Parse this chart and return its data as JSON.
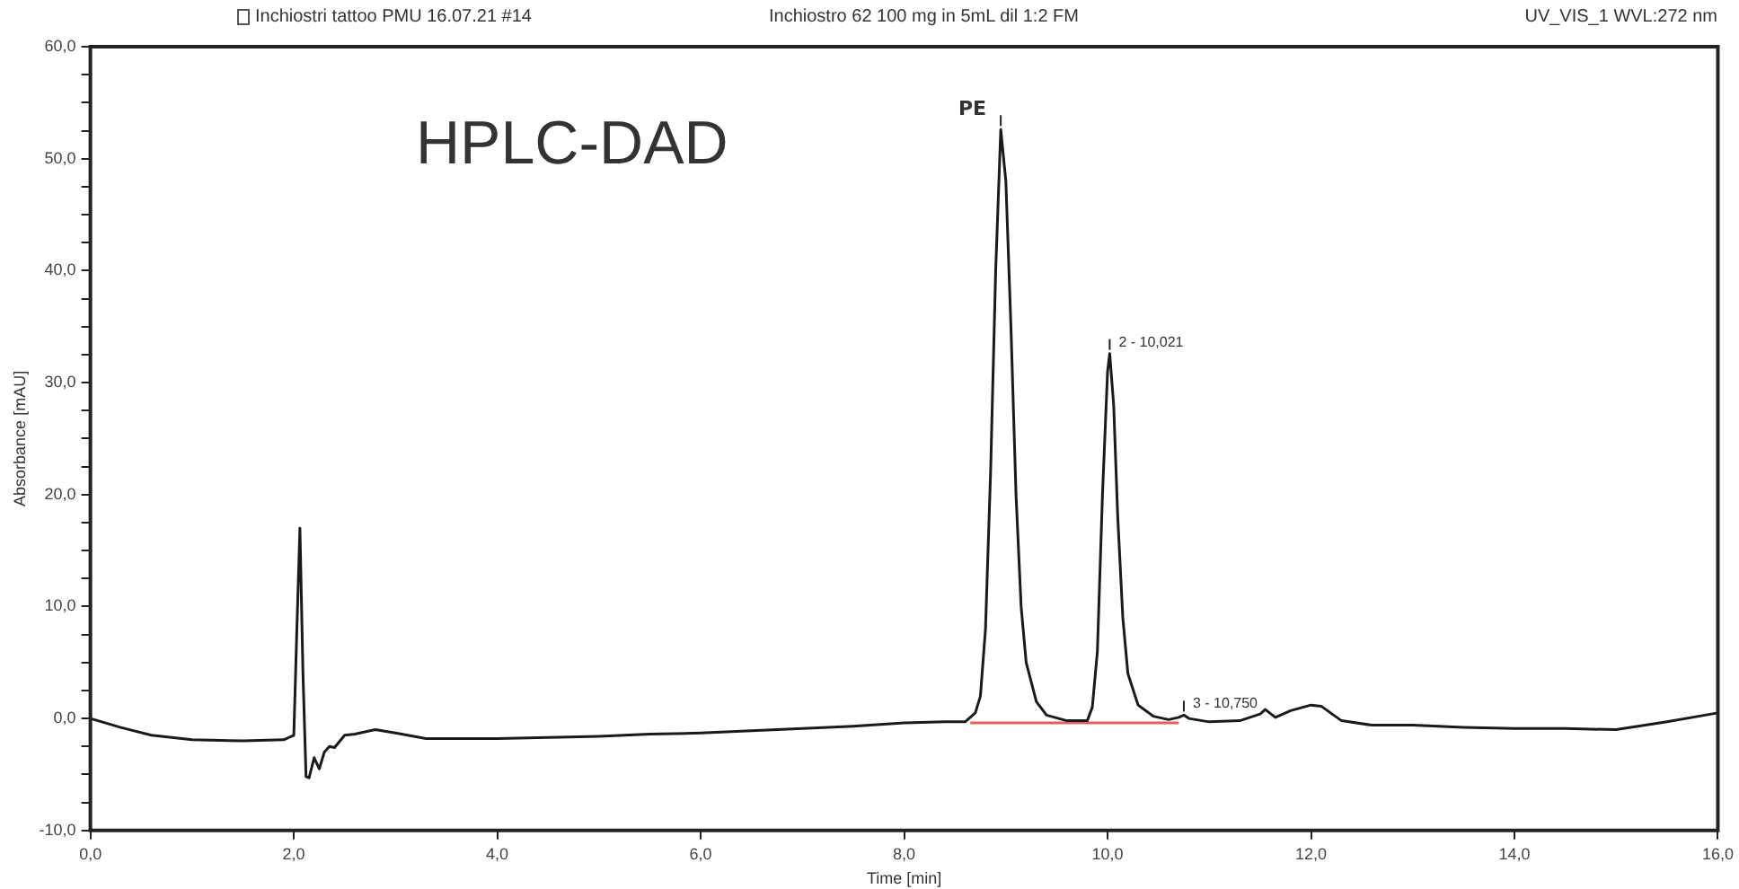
{
  "chart_data": {
    "type": "line",
    "title": "Inchiostri tattoo PMU 16.07.21 #14",
    "subtitle": "Inchiostro 62 100 mg in 5mL dil 1:2 FM",
    "xlabel": "Time [min]",
    "ylabel": "Absorbance [mAU]",
    "series": [
      {
        "color": "#1a1a1a",
        "x": [
          0,
          0.3,
          0.6,
          1.0,
          1.5,
          1.9,
          2.0,
          2.03,
          2.06,
          2.09,
          2.12,
          2.15,
          2.2,
          2.25,
          2.3,
          2.35,
          2.4,
          2.5,
          2.6,
          2.8,
          3.0,
          3.3,
          3.6,
          4.0,
          4.5,
          5.0,
          5.5,
          6.0,
          6.5,
          7.0,
          7.5,
          8.0,
          8.4,
          8.6,
          8.7,
          8.75,
          8.8,
          8.85,
          8.9,
          8.95,
          9.0,
          9.05,
          9.1,
          9.15,
          9.2,
          9.3,
          9.4,
          9.6,
          9.8,
          9.85,
          9.9,
          9.95,
          10.0,
          10.021,
          10.06,
          10.1,
          10.15,
          10.2,
          10.3,
          10.45,
          10.6,
          10.7,
          10.75,
          10.8,
          11.0,
          11.3,
          11.5,
          11.55,
          11.65,
          11.8,
          12.0,
          12.1,
          12.3,
          12.6,
          13.0,
          13.5,
          14.0,
          14.5,
          15.0,
          15.5,
          16.0
        ],
        "values": [
          0,
          -0.8,
          -1.5,
          -1.9,
          -2.0,
          -1.9,
          -1.5,
          8,
          17,
          4,
          -5.2,
          -5.3,
          -3.5,
          -4.5,
          -3,
          -2.5,
          -2.6,
          -1.5,
          -1.4,
          -1.0,
          -1.3,
          -1.8,
          -1.8,
          -1.8,
          -1.7,
          -1.6,
          -1.4,
          -1.3,
          -1.1,
          -0.9,
          -0.7,
          -0.4,
          -0.3,
          -0.3,
          0.5,
          2,
          8,
          22,
          40,
          52.6,
          48,
          35,
          20,
          10,
          5,
          1.5,
          0.3,
          -0.2,
          -0.2,
          1,
          6,
          20,
          31,
          32.6,
          28,
          18,
          9,
          4,
          1.2,
          0.2,
          -0.1,
          0.1,
          0.3,
          0,
          -0.3,
          -0.2,
          0.4,
          0.8,
          0.1,
          0.7,
          1.2,
          1.1,
          -0.2,
          -0.6,
          -0.6,
          -0.8,
          -0.9,
          -0.9,
          -1.0,
          -0.3,
          0.5
        ]
      },
      {
        "color": "#e06060",
        "x": [
          8.65,
          10.7
        ],
        "values": [
          -0.4,
          -0.4
        ]
      }
    ],
    "xlim": [
      0,
      16
    ],
    "xticks": [
      {
        "value": 0,
        "label": "0,0"
      },
      {
        "value": 2,
        "label": "2,0"
      },
      {
        "value": 4,
        "label": "4,0"
      },
      {
        "value": 6,
        "label": "6,0"
      },
      {
        "value": 8,
        "label": "8,0"
      },
      {
        "value": 10,
        "label": "10,0"
      },
      {
        "value": 12,
        "label": "12,0"
      },
      {
        "value": 14,
        "label": "14,0"
      },
      {
        "value": 16,
        "label": "16,0"
      }
    ],
    "ylim": [
      -10,
      60
    ],
    "yticks": [
      {
        "value": -10,
        "label": "-10,0"
      },
      {
        "value": -7.5,
        "label": null
      },
      {
        "value": -5,
        "label": null
      },
      {
        "value": -2.5,
        "label": null
      },
      {
        "value": 0,
        "label": "0,0"
      },
      {
        "value": 2.5,
        "label": null
      },
      {
        "value": 5,
        "label": null
      },
      {
        "value": 7.5,
        "label": null
      },
      {
        "value": 10,
        "label": "10,0"
      },
      {
        "value": 12.5,
        "label": null
      },
      {
        "value": 15,
        "label": null
      },
      {
        "value": 17.5,
        "label": null
      },
      {
        "value": 20,
        "label": "20,0"
      },
      {
        "value": 22.5,
        "label": null
      },
      {
        "value": 25,
        "label": null
      },
      {
        "value": 27.5,
        "label": null
      },
      {
        "value": 30,
        "label": "30,0"
      },
      {
        "value": 32.5,
        "label": null
      },
      {
        "value": 35,
        "label": null
      },
      {
        "value": 37.5,
        "label": null
      },
      {
        "value": 40,
        "label": "40,0"
      },
      {
        "value": 42.5,
        "label": null
      },
      {
        "value": 45,
        "label": null
      },
      {
        "value": 47.5,
        "label": null
      },
      {
        "value": 50,
        "label": "50,0"
      },
      {
        "value": 52.5,
        "label": null
      },
      {
        "value": 55,
        "label": null
      },
      {
        "value": 57.5,
        "label": null
      },
      {
        "value": 60,
        "label": "60,0"
      }
    ],
    "annotations": [
      "UV_VIS_1 WVL:272 nm",
      "HPLC-DAD",
      {
        "text": "PE",
        "x": 8.95,
        "y": 52.6
      },
      {
        "text": "2 - 10,021",
        "x": 10.021,
        "y": 32.6
      },
      {
        "text": "3 - 10,750",
        "x": 10.75,
        "y": 0.3
      }
    ],
    "marker": "none",
    "line_style": "solid",
    "legend": false
  }
}
